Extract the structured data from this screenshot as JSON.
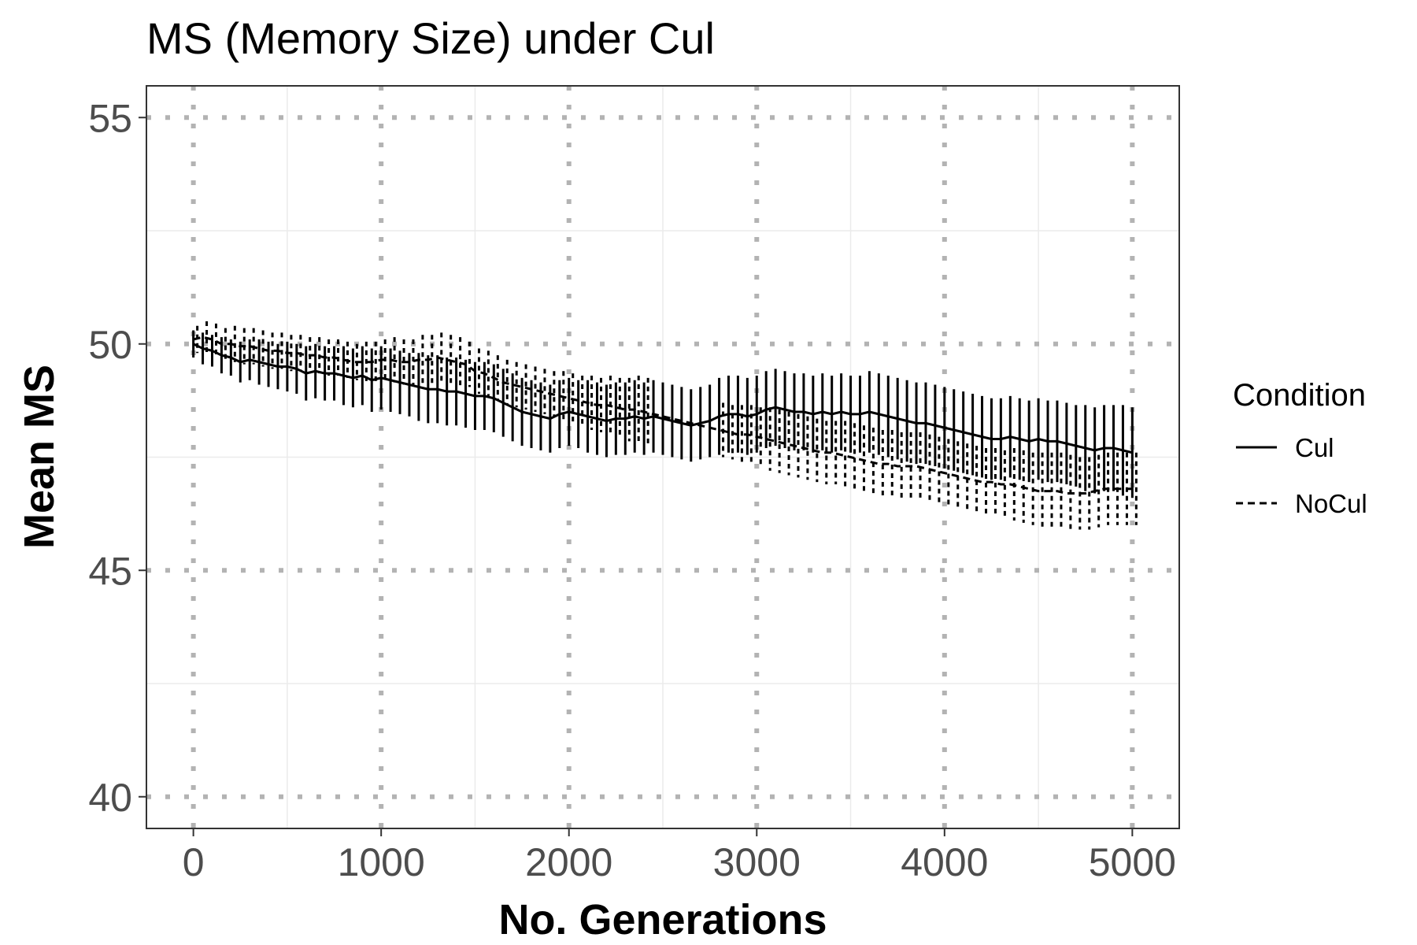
{
  "chart_data": {
    "type": "line",
    "title": "MS (Memory Size) under Cul",
    "xlabel": "No. Generations",
    "ylabel": "Mean MS",
    "xlim": [
      -250,
      5250
    ],
    "ylim": [
      39.3,
      55.7
    ],
    "x_ticks": [
      0,
      1000,
      2000,
      3000,
      4000,
      5000
    ],
    "y_ticks": [
      40,
      45,
      50,
      55
    ],
    "x_tick_labels": [
      "0",
      "1000",
      "2000",
      "3000",
      "4000",
      "5000"
    ],
    "y_tick_labels": [
      "40",
      "45",
      "50",
      "55"
    ],
    "grid": true,
    "legend": {
      "title": "Condition",
      "position": "right"
    },
    "colors": {
      "line": "#000000",
      "grid_major": "#b3b3b3",
      "grid_minor": "#ebebeb",
      "tick_label": "#4d4d4d"
    },
    "x": [
      0,
      50,
      100,
      150,
      200,
      250,
      300,
      350,
      400,
      450,
      500,
      550,
      600,
      650,
      700,
      750,
      800,
      850,
      900,
      950,
      1000,
      1050,
      1100,
      1150,
      1200,
      1250,
      1300,
      1350,
      1400,
      1450,
      1500,
      1550,
      1600,
      1650,
      1700,
      1750,
      1800,
      1850,
      1900,
      1950,
      2000,
      2050,
      2100,
      2150,
      2200,
      2250,
      2300,
      2350,
      2400,
      2450,
      2500,
      2550,
      2600,
      2650,
      2700,
      2750,
      2800,
      2850,
      2900,
      2950,
      3000,
      3050,
      3100,
      3150,
      3200,
      3250,
      3300,
      3350,
      3400,
      3450,
      3500,
      3550,
      3600,
      3650,
      3700,
      3750,
      3800,
      3850,
      3900,
      3950,
      4000,
      4050,
      4100,
      4150,
      4200,
      4250,
      4300,
      4350,
      4400,
      4450,
      4500,
      4550,
      4600,
      4650,
      4700,
      4750,
      4800,
      4850,
      4900,
      4950,
      5000
    ],
    "series": [
      {
        "name": "Cul",
        "linestyle": "solid",
        "values": [
          50.0,
          49.9,
          49.85,
          49.75,
          49.7,
          49.6,
          49.65,
          49.6,
          49.55,
          49.5,
          49.5,
          49.45,
          49.35,
          49.4,
          49.35,
          49.35,
          49.3,
          49.25,
          49.3,
          49.2,
          49.25,
          49.2,
          49.15,
          49.1,
          49.05,
          49.0,
          49.0,
          48.95,
          48.95,
          48.9,
          48.85,
          48.85,
          48.8,
          48.7,
          48.6,
          48.5,
          48.45,
          48.4,
          48.35,
          48.45,
          48.5,
          48.45,
          48.4,
          48.35,
          48.3,
          48.35,
          48.35,
          48.4,
          48.35,
          48.4,
          48.35,
          48.3,
          48.25,
          48.2,
          48.25,
          48.3,
          48.4,
          48.45,
          48.45,
          48.4,
          48.45,
          48.55,
          48.6,
          48.55,
          48.5,
          48.5,
          48.45,
          48.5,
          48.45,
          48.5,
          48.45,
          48.45,
          48.5,
          48.45,
          48.4,
          48.35,
          48.3,
          48.25,
          48.25,
          48.2,
          48.15,
          48.1,
          48.05,
          48.0,
          47.95,
          47.9,
          47.9,
          47.95,
          47.9,
          47.85,
          47.9,
          47.85,
          47.85,
          47.8,
          47.75,
          47.7,
          47.65,
          47.7,
          47.7,
          47.65,
          47.6
        ],
        "error": [
          0.3,
          0.35,
          0.35,
          0.4,
          0.4,
          0.45,
          0.45,
          0.5,
          0.5,
          0.5,
          0.55,
          0.55,
          0.6,
          0.6,
          0.6,
          0.6,
          0.65,
          0.65,
          0.65,
          0.7,
          0.7,
          0.7,
          0.7,
          0.7,
          0.75,
          0.75,
          0.75,
          0.75,
          0.75,
          0.75,
          0.75,
          0.75,
          0.75,
          0.75,
          0.75,
          0.75,
          0.75,
          0.75,
          0.75,
          0.75,
          0.75,
          0.75,
          0.8,
          0.8,
          0.8,
          0.8,
          0.8,
          0.8,
          0.8,
          0.8,
          0.8,
          0.8,
          0.8,
          0.8,
          0.8,
          0.8,
          0.85,
          0.85,
          0.85,
          0.85,
          0.85,
          0.85,
          0.85,
          0.85,
          0.85,
          0.85,
          0.85,
          0.85,
          0.85,
          0.85,
          0.85,
          0.85,
          0.9,
          0.9,
          0.9,
          0.9,
          0.9,
          0.9,
          0.9,
          0.9,
          0.9,
          0.9,
          0.9,
          0.9,
          0.9,
          0.9,
          0.9,
          0.9,
          0.9,
          0.9,
          0.9,
          0.9,
          0.9,
          0.9,
          0.9,
          0.95,
          0.95,
          0.95,
          0.95,
          1.0,
          1.0
        ]
      },
      {
        "name": "NoCul",
        "linestyle": "dashed",
        "values": [
          50.1,
          50.15,
          50.1,
          50.0,
          50.0,
          49.95,
          49.95,
          49.9,
          49.85,
          49.85,
          49.8,
          49.8,
          49.75,
          49.75,
          49.7,
          49.7,
          49.65,
          49.6,
          49.6,
          49.6,
          49.65,
          49.65,
          49.6,
          49.6,
          49.65,
          49.65,
          49.7,
          49.65,
          49.6,
          49.55,
          49.4,
          49.35,
          49.25,
          49.15,
          49.1,
          49.05,
          49.0,
          48.95,
          48.9,
          48.85,
          48.8,
          48.75,
          48.7,
          48.65,
          48.65,
          48.6,
          48.55,
          48.55,
          48.5,
          48.45,
          48.4,
          48.35,
          48.3,
          48.25,
          48.2,
          48.15,
          48.1,
          48.05,
          48.0,
          48.0,
          47.95,
          47.9,
          47.85,
          47.8,
          47.75,
          47.7,
          47.65,
          47.6,
          47.6,
          47.55,
          47.5,
          47.45,
          47.4,
          47.35,
          47.35,
          47.3,
          47.3,
          47.3,
          47.25,
          47.2,
          47.15,
          47.1,
          47.05,
          47.0,
          46.95,
          46.95,
          46.9,
          46.9,
          46.85,
          46.8,
          46.75,
          46.75,
          46.75,
          46.7,
          46.7,
          46.7,
          46.75,
          46.8,
          46.8,
          46.8,
          46.8
        ],
        "error": [
          0.3,
          0.35,
          0.35,
          0.35,
          0.4,
          0.4,
          0.4,
          0.4,
          0.4,
          0.4,
          0.4,
          0.4,
          0.4,
          0.4,
          0.4,
          0.4,
          0.4,
          0.4,
          0.45,
          0.45,
          0.45,
          0.5,
          0.5,
          0.5,
          0.55,
          0.55,
          0.55,
          0.55,
          0.55,
          0.5,
          0.5,
          0.5,
          0.5,
          0.5,
          0.5,
          0.5,
          0.5,
          0.5,
          0.5,
          0.55,
          0.55,
          0.55,
          0.6,
          0.6,
          0.65,
          0.65,
          0.7,
          0.75,
          0.75,
          0.0,
          0.0,
          0.0,
          0.0,
          0.0,
          0.0,
          0.0,
          0.6,
          0.6,
          0.65,
          0.65,
          0.65,
          0.7,
          0.7,
          0.7,
          0.7,
          0.7,
          0.7,
          0.7,
          0.7,
          0.75,
          0.75,
          0.75,
          0.75,
          0.75,
          0.75,
          0.75,
          0.75,
          0.75,
          0.75,
          0.75,
          0.75,
          0.75,
          0.75,
          0.75,
          0.75,
          0.75,
          0.75,
          0.8,
          0.8,
          0.8,
          0.85,
          0.85,
          0.85,
          0.85,
          0.8,
          0.8,
          0.8,
          0.8,
          0.8,
          0.8,
          0.8
        ]
      }
    ]
  }
}
